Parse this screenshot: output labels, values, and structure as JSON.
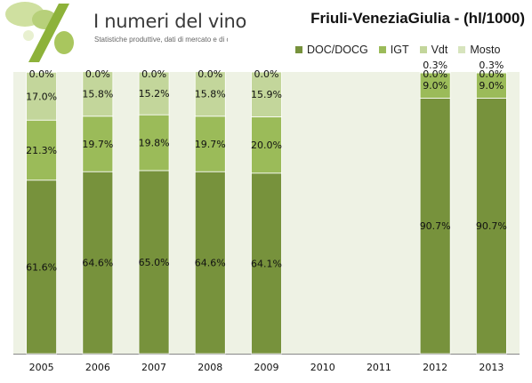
{
  "header": {
    "brand": "I numeri del vino",
    "tagline": "Statistiche produttive, dati di mercato e di consumo,",
    "logo_icon": "grape-percent-logo"
  },
  "chart_data": {
    "type": "bar",
    "stacked": true,
    "title": "Friuli-VeneziaGiulia - (hl/1000)",
    "xlabel": "",
    "ylabel": "",
    "ylim": [
      0,
      100
    ],
    "legend_position": "top-right",
    "categories": [
      "2005",
      "2006",
      "2007",
      "2008",
      "2009",
      "2010",
      "2011",
      "2012",
      "2013"
    ],
    "series": [
      {
        "name": "DOC/DOCG",
        "color": "#77923c",
        "values": [
          61.6,
          64.6,
          65.0,
          64.6,
          64.1,
          null,
          null,
          90.7,
          90.7
        ]
      },
      {
        "name": "IGT",
        "color": "#9bbb59",
        "values": [
          21.3,
          19.7,
          19.8,
          19.7,
          20.0,
          null,
          null,
          9.0,
          9.0
        ]
      },
      {
        "name": "Vdt",
        "color": "#c3d69b",
        "values": [
          17.0,
          15.8,
          15.2,
          15.8,
          15.9,
          null,
          null,
          0.3,
          0.3
        ]
      },
      {
        "name": "Mosto",
        "color": "#d7e4bd",
        "values": [
          0.0,
          0.0,
          0.0,
          0.0,
          0.0,
          null,
          null,
          0.0,
          0.0
        ]
      }
    ],
    "plot_background": "#eef2e4"
  }
}
